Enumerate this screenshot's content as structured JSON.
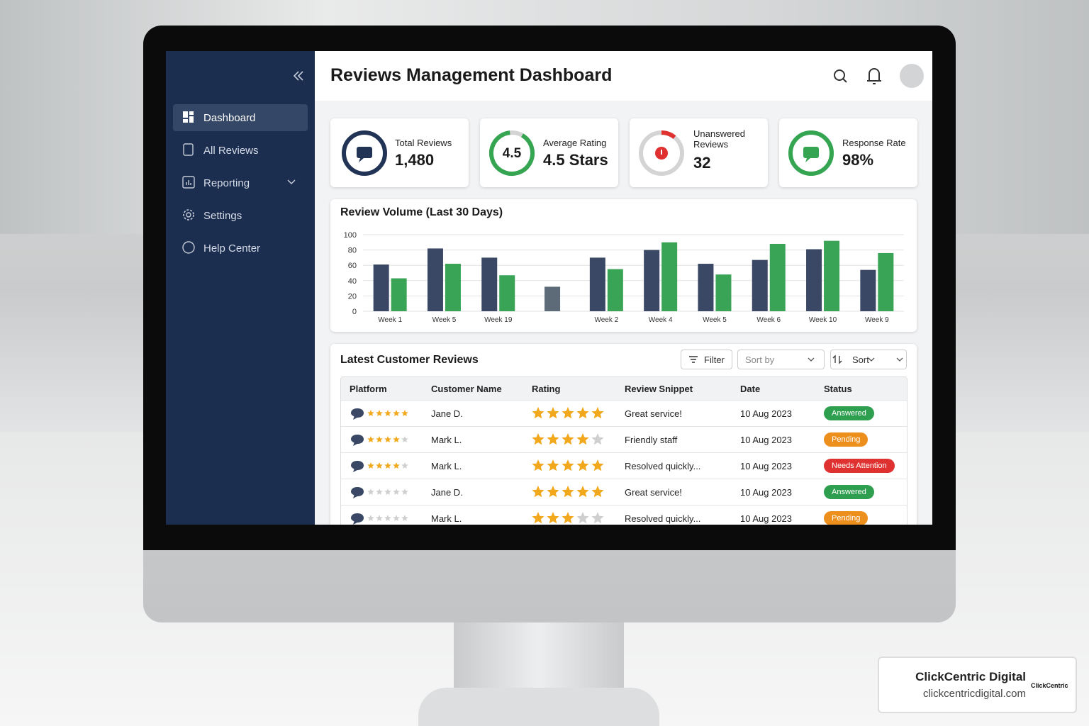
{
  "header": {
    "title": "Reviews Management Dashboard"
  },
  "sidebar": {
    "items": [
      "Dashboard",
      "All Reviews",
      "Reporting",
      "Settings",
      "Help Center"
    ]
  },
  "kpis": [
    {
      "label": "Total Reviews",
      "value": "1,480"
    },
    {
      "label": "Average Rating",
      "ring": "4.5",
      "value": "4.5 Stars"
    },
    {
      "label": "Unanswered Reviews",
      "value": "32"
    },
    {
      "label": "Response Rate",
      "value": "98%"
    }
  ],
  "chart_data": {
    "type": "bar",
    "title": "Review Volume (Last 30 Days)",
    "categories": [
      "Week 1",
      "Week 5",
      "Week 19",
      null,
      "Week 2",
      "Week 4",
      "Week 5",
      "Week 6",
      "Week 10",
      "Week 9"
    ],
    "series": [
      {
        "color": "#3a4866",
        "colors": [
          "#3a4866",
          "#3a4866",
          "#3a4866",
          "#5d6b78",
          "#3a4866",
          "#3a4866",
          "#3a4866",
          "#3a4866",
          "#3a4866",
          "#3a4866"
        ],
        "values": [
          61,
          82,
          70,
          32,
          70,
          80,
          62,
          67,
          81,
          54
        ]
      },
      {
        "color": "#39a455",
        "values": [
          43,
          62,
          47,
          null,
          55,
          90,
          48,
          88,
          92,
          76
        ]
      }
    ],
    "ylim": [
      0,
      100
    ],
    "yticks": [
      0,
      20,
      40,
      60,
      80,
      100
    ],
    "grid": true
  },
  "table": {
    "title": "Latest Customer Reviews",
    "controls": [
      "Filter",
      "Sort by",
      "Sort"
    ],
    "columns": [
      "Platform",
      "Customer Name",
      "Rating",
      "Review Snippet",
      "Date",
      "Status"
    ],
    "rows": [
      {
        "platform_stars": 5,
        "customer": "Jane D.",
        "rating": 5,
        "snippet": "Great service!",
        "date": "10 Aug 2023",
        "status": "Answered",
        "status_color": "#2e9e4f"
      },
      {
        "platform_stars": 4,
        "customer": "Mark L.",
        "rating": 4,
        "snippet": "Friendly staff",
        "date": "10 Aug 2023",
        "status": "Pending",
        "status_color": "#ec8f1c"
      },
      {
        "platform_stars": 4,
        "customer": "Mark L.",
        "rating": 5,
        "snippet": "Resolved quickly...",
        "date": "10 Aug 2023",
        "status": "Needs Attention",
        "status_color": "#e03131"
      },
      {
        "platform_stars": 0,
        "customer": "Jane D.",
        "rating": 5,
        "snippet": "Great service!",
        "date": "10 Aug 2023",
        "status": "Answered",
        "status_color": "#2e9e4f"
      },
      {
        "platform_stars": 0,
        "customer": "Mark L.",
        "rating": 3,
        "snippet": "Resolved quickly...",
        "date": "10 Aug 2023",
        "status": "Pending",
        "status_color": "#ec8f1c"
      }
    ]
  },
  "branding": {
    "name": "ClickCentric Digital",
    "url": "clickcentricdigital.com",
    "logo": "ClickCentric"
  }
}
